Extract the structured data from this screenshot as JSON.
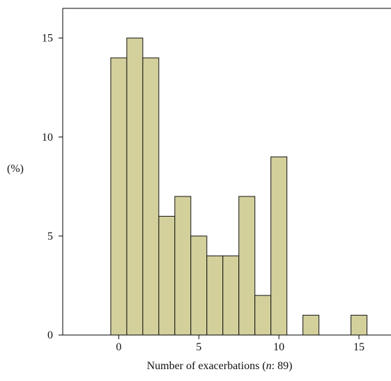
{
  "chart_data": {
    "type": "bar",
    "title": "",
    "xlabel_prefix": "Number of exacerbations (",
    "xlabel_italic": "n",
    "xlabel_suffix": ": 89)",
    "ylabel": "(%)",
    "x": [
      0,
      1,
      2,
      3,
      4,
      5,
      6,
      7,
      8,
      9,
      10,
      12,
      15
    ],
    "values": [
      14,
      15,
      14,
      6,
      7,
      5,
      4,
      4,
      7,
      2,
      9,
      1,
      1
    ],
    "xlim": [
      -3.5,
      17
    ],
    "ylim": [
      0,
      16.5
    ],
    "x_ticks": [
      0,
      5,
      10,
      15
    ],
    "y_ticks": [
      0,
      5,
      10,
      15
    ],
    "bar_color": "#d4d09c",
    "grid": false,
    "legend": "none"
  }
}
